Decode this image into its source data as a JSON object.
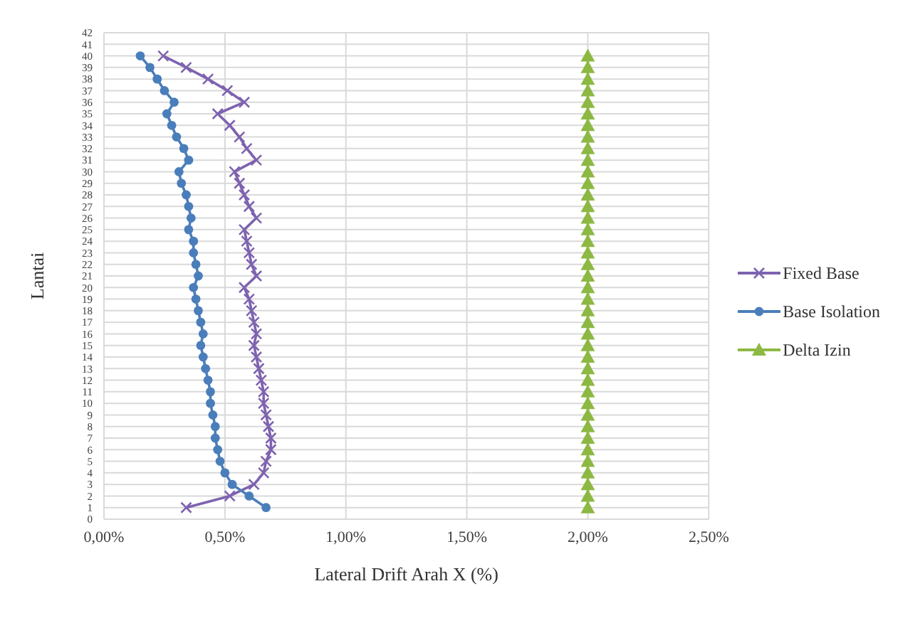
{
  "chart_data": {
    "type": "line",
    "xlabel": "Lateral Drift Arah X (%)",
    "ylabel": "Lantai",
    "xlim": [
      0,
      2.5
    ],
    "xticks": [
      {
        "value": 0,
        "label": "0,00%"
      },
      {
        "value": 0.5,
        "label": "0,50%"
      },
      {
        "value": 1,
        "label": "1,00%"
      },
      {
        "value": 1.5,
        "label": "1,50%"
      },
      {
        "value": 2,
        "label": "2,00%"
      },
      {
        "value": 2.5,
        "label": "2,50%"
      }
    ],
    "ylim": [
      0,
      42
    ],
    "yticks": [
      0,
      1,
      2,
      3,
      4,
      5,
      6,
      7,
      8,
      9,
      10,
      11,
      12,
      13,
      14,
      15,
      16,
      17,
      18,
      19,
      20,
      21,
      22,
      23,
      24,
      25,
      26,
      27,
      28,
      29,
      30,
      31,
      32,
      33,
      34,
      35,
      36,
      37,
      38,
      39,
      40,
      41,
      42
    ],
    "grid": true,
    "legend": "right",
    "series": [
      {
        "name": "Fixed Base",
        "color": "#7e63b0",
        "marker": "cross",
        "x": [
          0.34,
          0.52,
          0.62,
          0.66,
          0.67,
          0.69,
          0.69,
          0.68,
          0.67,
          0.66,
          0.66,
          0.65,
          0.64,
          0.63,
          0.62,
          0.63,
          0.62,
          0.61,
          0.6,
          0.58,
          0.63,
          0.61,
          0.6,
          0.59,
          0.58,
          0.63,
          0.6,
          0.58,
          0.56,
          0.54,
          0.63,
          0.59,
          0.56,
          0.52,
          0.47,
          0.58,
          0.51,
          0.43,
          0.34,
          0.245
        ],
        "values": [
          1,
          2,
          3,
          4,
          5,
          6,
          7,
          8,
          9,
          10,
          11,
          12,
          13,
          14,
          15,
          16,
          17,
          18,
          19,
          20,
          21,
          22,
          23,
          24,
          25,
          26,
          27,
          28,
          29,
          30,
          31,
          32,
          33,
          34,
          35,
          36,
          37,
          38,
          39,
          40
        ]
      },
      {
        "name": "Base Isolation",
        "color": "#4a7ebb",
        "marker": "circle",
        "x": [
          0.67,
          0.6,
          0.53,
          0.5,
          0.48,
          0.47,
          0.46,
          0.46,
          0.45,
          0.44,
          0.44,
          0.43,
          0.42,
          0.41,
          0.4,
          0.41,
          0.4,
          0.39,
          0.38,
          0.37,
          0.39,
          0.38,
          0.37,
          0.37,
          0.35,
          0.36,
          0.35,
          0.34,
          0.32,
          0.31,
          0.35,
          0.33,
          0.3,
          0.28,
          0.26,
          0.29,
          0.25,
          0.22,
          0.19,
          0.15
        ],
        "values": [
          1,
          2,
          3,
          4,
          5,
          6,
          7,
          8,
          9,
          10,
          11,
          12,
          13,
          14,
          15,
          16,
          17,
          18,
          19,
          20,
          21,
          22,
          23,
          24,
          25,
          26,
          27,
          28,
          29,
          30,
          31,
          32,
          33,
          34,
          35,
          36,
          37,
          38,
          39,
          40
        ]
      },
      {
        "name": "Delta Izin",
        "color": "#8db843",
        "marker": "triangle",
        "x": [
          2,
          2,
          2,
          2,
          2,
          2,
          2,
          2,
          2,
          2,
          2,
          2,
          2,
          2,
          2,
          2,
          2,
          2,
          2,
          2,
          2,
          2,
          2,
          2,
          2,
          2,
          2,
          2,
          2,
          2,
          2,
          2,
          2,
          2,
          2,
          2,
          2,
          2,
          2,
          2
        ],
        "values": [
          1,
          2,
          3,
          4,
          5,
          6,
          7,
          8,
          9,
          10,
          11,
          12,
          13,
          14,
          15,
          16,
          17,
          18,
          19,
          20,
          21,
          22,
          23,
          24,
          25,
          26,
          27,
          28,
          29,
          30,
          31,
          32,
          33,
          34,
          35,
          36,
          37,
          38,
          39,
          40
        ]
      }
    ]
  }
}
